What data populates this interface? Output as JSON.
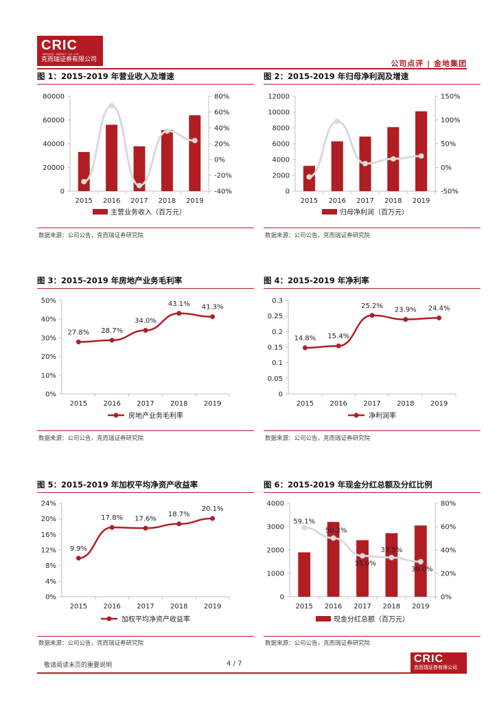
{
  "header": {
    "logo_text": "CRIC",
    "logo_en": "INSIGHTS · MARKET · CO., LTD",
    "logo_cn": "克而瑞证券有限公司",
    "right_text": "公司点评 | 金地集团"
  },
  "footer": {
    "note": "敬请阅读末页的重要说明",
    "page": "4 / 7",
    "logo_text": "CRIC",
    "logo_cn": "克而瑞证券有限公司"
  },
  "colors": {
    "accent": "#b31b22",
    "bar": "#b01e24",
    "line_gray": "#d9d9d9"
  },
  "source_text": "数据来源：公司公告，克而瑞证券研究院",
  "figures": [
    {
      "title": "图 1：2015-2019 年营业收入及增速",
      "chart_data": {
        "type": "bar+line",
        "categories": [
          "2015",
          "2016",
          "2017",
          "2018",
          "2019"
        ],
        "bar_series": {
          "name": "主营业务收入（百万元）",
          "values": [
            33000,
            56000,
            37800,
            51500,
            64000
          ]
        },
        "line_series": {
          "name": "增速",
          "values": [
            -28,
            68,
            -33,
            36,
            24
          ]
        },
        "y_left": {
          "min": 0,
          "max": 80000,
          "ticks": [
            "0",
            "20000",
            "40000",
            "60000",
            "80000"
          ]
        },
        "y_right": {
          "min": -40,
          "max": 80,
          "ticks": [
            "-40%",
            "-20%",
            "0%",
            "20%",
            "40%",
            "60%",
            "80%"
          ]
        },
        "legend": "主营业务收入（百万元）"
      }
    },
    {
      "title": "图 2：2015-2019 年归母净利润及增速",
      "chart_data": {
        "type": "bar+line",
        "categories": [
          "2015",
          "2016",
          "2017",
          "2018",
          "2019"
        ],
        "bar_series": {
          "name": "归母净利润（百万元）",
          "values": [
            3200,
            6300,
            6900,
            8100,
            10100
          ]
        },
        "line_series": {
          "name": "增速",
          "values": [
            -20,
            97,
            8,
            18,
            24
          ]
        },
        "y_left": {
          "min": 0,
          "max": 12000,
          "ticks": [
            "0",
            "2000",
            "4000",
            "6000",
            "8000",
            "10000",
            "12000"
          ]
        },
        "y_right": {
          "min": -50,
          "max": 150,
          "ticks": [
            "-50%",
            "0%",
            "50%",
            "100%",
            "150%"
          ]
        },
        "legend": "归母净利润（百万元）"
      }
    },
    {
      "title": "图 3：2015-2019 年房地产业务毛利率",
      "chart_data": {
        "type": "line",
        "categories": [
          "2015",
          "2016",
          "2017",
          "2018",
          "2019"
        ],
        "series": {
          "name": "房地产业务毛利率",
          "values": [
            27.8,
            28.7,
            34.0,
            43.1,
            41.3
          ]
        },
        "data_labels": [
          "27.8%",
          "28.7%",
          "34.0%",
          "43.1%",
          "41.3%"
        ],
        "y": {
          "min": 0,
          "max": 50,
          "ticks": [
            "0%",
            "10%",
            "20%",
            "30%",
            "40%",
            "50%"
          ]
        },
        "legend": "房地产业务毛利率"
      }
    },
    {
      "title": "图 4：2015-2019 年净利率",
      "chart_data": {
        "type": "line",
        "categories": [
          "2015",
          "2016",
          "2017",
          "2018",
          "2019"
        ],
        "series": {
          "name": "净利润率",
          "values": [
            0.148,
            0.154,
            0.252,
            0.239,
            0.244
          ]
        },
        "data_labels": [
          "14.8%",
          "15.4%",
          "25.2%",
          "23.9%",
          "24.4%"
        ],
        "y": {
          "min": 0,
          "max": 0.3,
          "ticks": [
            "0",
            "0.05",
            "0.1",
            "0.15",
            "0.2",
            "0.25",
            "0.3"
          ]
        },
        "legend": "净利润率"
      }
    },
    {
      "title": "图 5：2015-2019 年加权平均净资产收益率",
      "chart_data": {
        "type": "line",
        "categories": [
          "2015",
          "2016",
          "2017",
          "2018",
          "2019"
        ],
        "series": {
          "name": "加权平均净资产收益率",
          "values": [
            9.9,
            17.8,
            17.6,
            18.7,
            20.1
          ]
        },
        "data_labels": [
          "9.9%",
          "17.8%",
          "17.6%",
          "18.7%",
          "20.1%"
        ],
        "y": {
          "min": 0,
          "max": 24,
          "ticks": [
            "0%",
            "4%",
            "8%",
            "12%",
            "16%",
            "20%",
            "24%"
          ]
        },
        "legend": "加权平均净资产收益率"
      }
    },
    {
      "title": "图 6：2015-2019 年现金分红总额及分红比例",
      "chart_data": {
        "type": "bar+line",
        "categories": [
          "2015",
          "2016",
          "2017",
          "2018",
          "2019"
        ],
        "bar_series": {
          "name": "现金分红总额（百万元）",
          "values": [
            1900,
            3200,
            2420,
            2720,
            3050
          ]
        },
        "line_series": {
          "name": "分红比例",
          "values": [
            59.1,
            50.2,
            35.0,
            33.5,
            30.0
          ]
        },
        "data_labels": [
          "59.1%",
          "50.2%",
          "35.0%",
          "33.5%",
          "30.0%"
        ],
        "y_left": {
          "min": 0,
          "max": 4000,
          "ticks": [
            "0",
            "1000",
            "2000",
            "3000",
            "4000"
          ]
        },
        "y_right": {
          "min": 0,
          "max": 80,
          "ticks": [
            "0%",
            "20%",
            "40%",
            "60%",
            "80%"
          ]
        },
        "legend": "现金分红总额（百万元）"
      }
    }
  ]
}
